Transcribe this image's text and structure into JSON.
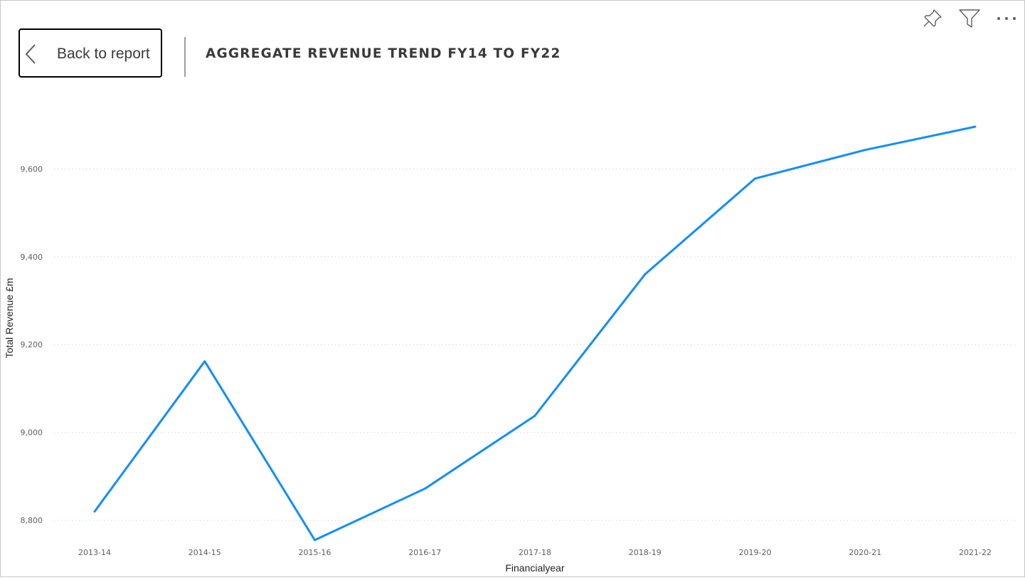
{
  "header": {
    "back_label": "Back to report",
    "title": "AGGREGATE REVENUE TREND FY14 TO FY22"
  },
  "toolbar": {
    "icons": [
      "pin-icon",
      "filter-icon",
      "more-options-icon"
    ]
  },
  "colors": {
    "line": "#118DFF",
    "grid": "#c8c6c4",
    "text": "#605e5c"
  },
  "chart_data": {
    "type": "line",
    "title": "AGGREGATE REVENUE TREND FY14 TO FY22",
    "xlabel": "Financialyear",
    "ylabel": "Total Revenue £m",
    "categories": [
      "2013-14",
      "2014-15",
      "2015-16",
      "2016-17",
      "2017-18",
      "2018-19",
      "2019-20",
      "2020-21",
      "2021-22"
    ],
    "series": [
      {
        "values": [
          8820,
          9162,
          8755,
          8872,
          9038,
          9360,
          9578,
          9643,
          9696
        ]
      }
    ],
    "ylim": [
      8750,
      9790
    ],
    "yticks": [
      8800,
      9000,
      9200,
      9400,
      9600
    ],
    "ytick_labels": [
      "8,800",
      "9,000",
      "9,200",
      "9,400",
      "9,600"
    ],
    "grid": "horizontal dotted",
    "legend": "none"
  }
}
